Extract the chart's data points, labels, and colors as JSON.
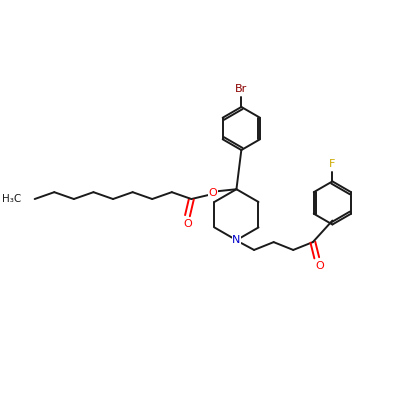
{
  "background_color": "#ffffff",
  "bond_color": "#1a1a1a",
  "atom_colors": {
    "O": "#ff0000",
    "N": "#0000cc",
    "Br": "#8b0000",
    "F": "#ccaa00"
  },
  "figsize": [
    4.0,
    4.0
  ],
  "dpi": 100
}
